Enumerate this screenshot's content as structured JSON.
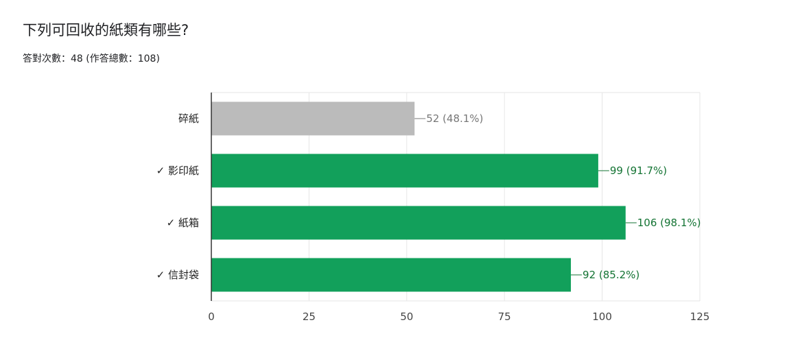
{
  "question": {
    "title": "下列可回收的紙類有哪些?",
    "summary": "答對次數：48 (作答總數：108)"
  },
  "chart_data": {
    "type": "bar",
    "orientation": "horizontal",
    "categories": [
      "碎紙",
      "✓ 影印紙",
      "✓ 紙箱",
      "✓ 信封袋"
    ],
    "values": [
      52,
      99,
      106,
      92
    ],
    "value_labels": [
      "52 (48.1%)",
      "99 (91.7%)",
      "106 (98.1%)",
      "92 (85.2%)"
    ],
    "correct": [
      false,
      true,
      true,
      true
    ],
    "xlim": [
      0,
      125
    ],
    "xticks": [
      0,
      25,
      50,
      75,
      100,
      125
    ],
    "grid": true,
    "colors": {
      "correct_bar": "#12a05b",
      "incorrect_bar": "#bbbbbb",
      "correct_label": "#137333",
      "incorrect_label": "#777777",
      "grid": "#e6e6e6",
      "axis": "#333333"
    }
  }
}
